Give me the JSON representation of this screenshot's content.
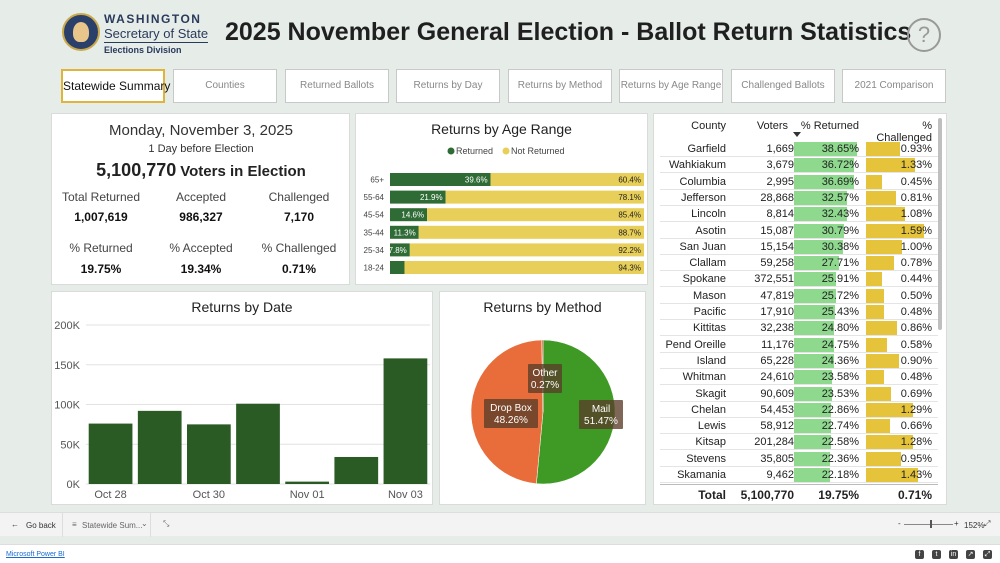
{
  "header": {
    "brand_line1": "WASHINGTON",
    "brand_line2": "Secretary of State",
    "brand_line3": "Elections Division",
    "title": "2025 November General Election - Ballot Return Statistics",
    "help_glyph": "?"
  },
  "tabs": [
    {
      "label": "Statewide Summary",
      "active": true
    },
    {
      "label": "Counties"
    },
    {
      "label": "Returned Ballots"
    },
    {
      "label": "Returns by Day"
    },
    {
      "label": "Returns by Method"
    },
    {
      "label": "Returns by Age Range"
    },
    {
      "label": "Challenged Ballots"
    },
    {
      "label": "2021 Comparison"
    }
  ],
  "summary": {
    "date": "Monday, November 3, 2025",
    "subtitle": "1 Day before Election",
    "voters_value": "5,100,770",
    "voters_label": "Voters in Election",
    "stats": [
      {
        "label": "Total Returned",
        "value": "1,007,619"
      },
      {
        "label": "Accepted",
        "value": "986,327"
      },
      {
        "label": "Challenged",
        "value": "7,170"
      },
      {
        "label": "% Returned",
        "value": "19.75%"
      },
      {
        "label": "% Accepted",
        "value": "19.34%"
      },
      {
        "label": "% Challenged",
        "value": "0.71%"
      }
    ]
  },
  "chart_data": [
    {
      "type": "bar",
      "orientation": "horizontal-stacked",
      "title": "Returns by Age Range",
      "legend": [
        "Returned",
        "Not Returned"
      ],
      "legend_position": "top",
      "categories": [
        "65+",
        "55-64",
        "45-54",
        "35-44",
        "25-34",
        "18-24"
      ],
      "series": [
        {
          "name": "Returned",
          "values": [
            39.6,
            21.9,
            14.6,
            11.3,
            7.8,
            5.7
          ],
          "labels": [
            "39.6%",
            "21.9%",
            "14.6%",
            "11.3%",
            "7.8%",
            ""
          ]
        },
        {
          "name": "Not Returned",
          "values": [
            60.4,
            78.1,
            85.4,
            88.7,
            92.2,
            94.3
          ],
          "labels": [
            "60.4%",
            "78.1%",
            "85.4%",
            "88.7%",
            "92.2%",
            "94.3%"
          ]
        }
      ],
      "colors": {
        "Returned": "#2e6b35",
        "Not Returned": "#e8cf5a"
      }
    },
    {
      "type": "bar",
      "title": "Returns by Date",
      "categories": [
        "Oct 28",
        "Oct 29",
        "Oct 30",
        "Oct 31",
        "Nov 01",
        "Nov 02",
        "Nov 03"
      ],
      "x_tick_labels": [
        "Oct 28",
        "",
        "Oct 30",
        "",
        "Nov 01",
        "",
        "Nov 03"
      ],
      "values": [
        76000,
        92000,
        75000,
        101000,
        3000,
        34000,
        158000
      ],
      "ylim": [
        0,
        200000
      ],
      "y_ticks": [
        0,
        50000,
        100000,
        150000,
        200000
      ],
      "y_tick_labels": [
        "0K",
        "50K",
        "100K",
        "150K",
        "200K"
      ],
      "grid": true,
      "color": "#2a5b25"
    },
    {
      "type": "pie",
      "title": "Returns by Method",
      "slices": [
        {
          "name": "Mail",
          "value": 51.47,
          "label": "51.47%",
          "color": "#3e9a24"
        },
        {
          "name": "Drop Box",
          "value": 48.26,
          "label": "48.26%",
          "color": "#e96d3a"
        },
        {
          "name": "Other",
          "value": 0.27,
          "label": "0.27%",
          "color": "#d94f2a"
        }
      ]
    },
    {
      "type": "table",
      "columns": [
        "County",
        "Voters",
        "% Returned",
        "% Challenged"
      ],
      "sort_column": "% Returned",
      "rows": [
        {
          "county": "Garfield",
          "voters": "1,669",
          "returned": "38.65%",
          "challenged": "0.93%",
          "r": 38.65,
          "c": 0.93
        },
        {
          "county": "Wahkiakum",
          "voters": "3,679",
          "returned": "36.72%",
          "challenged": "1.33%",
          "r": 36.72,
          "c": 1.33
        },
        {
          "county": "Columbia",
          "voters": "2,995",
          "returned": "36.69%",
          "challenged": "0.45%",
          "r": 36.69,
          "c": 0.45
        },
        {
          "county": "Jefferson",
          "voters": "28,868",
          "returned": "32.57%",
          "challenged": "0.81%",
          "r": 32.57,
          "c": 0.81
        },
        {
          "county": "Lincoln",
          "voters": "8,814",
          "returned": "32.43%",
          "challenged": "1.08%",
          "r": 32.43,
          "c": 1.08
        },
        {
          "county": "Asotin",
          "voters": "15,087",
          "returned": "30.79%",
          "challenged": "1.59%",
          "r": 30.79,
          "c": 1.59
        },
        {
          "county": "San Juan",
          "voters": "15,154",
          "returned": "30.38%",
          "challenged": "1.00%",
          "r": 30.38,
          "c": 1.0
        },
        {
          "county": "Clallam",
          "voters": "59,258",
          "returned": "27.71%",
          "challenged": "0.78%",
          "r": 27.71,
          "c": 0.78
        },
        {
          "county": "Spokane",
          "voters": "372,551",
          "returned": "25.91%",
          "challenged": "0.44%",
          "r": 25.91,
          "c": 0.44
        },
        {
          "county": "Mason",
          "voters": "47,819",
          "returned": "25.72%",
          "challenged": "0.50%",
          "r": 25.72,
          "c": 0.5
        },
        {
          "county": "Pacific",
          "voters": "17,910",
          "returned": "25.43%",
          "challenged": "0.48%",
          "r": 25.43,
          "c": 0.48
        },
        {
          "county": "Kittitas",
          "voters": "32,238",
          "returned": "24.80%",
          "challenged": "0.86%",
          "r": 24.8,
          "c": 0.86
        },
        {
          "county": "Pend Oreille",
          "voters": "11,176",
          "returned": "24.75%",
          "challenged": "0.58%",
          "r": 24.75,
          "c": 0.58
        },
        {
          "county": "Island",
          "voters": "65,228",
          "returned": "24.36%",
          "challenged": "0.90%",
          "r": 24.36,
          "c": 0.9
        },
        {
          "county": "Whitman",
          "voters": "24,610",
          "returned": "23.58%",
          "challenged": "0.48%",
          "r": 23.58,
          "c": 0.48
        },
        {
          "county": "Skagit",
          "voters": "90,609",
          "returned": "23.53%",
          "challenged": "0.69%",
          "r": 23.53,
          "c": 0.69
        },
        {
          "county": "Chelan",
          "voters": "54,453",
          "returned": "22.86%",
          "challenged": "1.29%",
          "r": 22.86,
          "c": 1.29
        },
        {
          "county": "Lewis",
          "voters": "58,912",
          "returned": "22.74%",
          "challenged": "0.66%",
          "r": 22.74,
          "c": 0.66
        },
        {
          "county": "Kitsap",
          "voters": "201,284",
          "returned": "22.58%",
          "challenged": "1.28%",
          "r": 22.58,
          "c": 1.28
        },
        {
          "county": "Stevens",
          "voters": "35,805",
          "returned": "22.36%",
          "challenged": "0.95%",
          "r": 22.36,
          "c": 0.95
        },
        {
          "county": "Skamania",
          "voters": "9,462",
          "returned": "22.18%",
          "challenged": "1.43%",
          "r": 22.18,
          "c": 1.43
        }
      ],
      "total": {
        "label": "Total",
        "voters": "5,100,770",
        "returned": "19.75%",
        "challenged": "0.71%"
      }
    }
  ],
  "bottombar": {
    "back_label": "Go back",
    "page_label": "Statewide Sum...",
    "zoom": "152%"
  },
  "footer": {
    "powerbi_link": "Microsoft Power BI"
  }
}
